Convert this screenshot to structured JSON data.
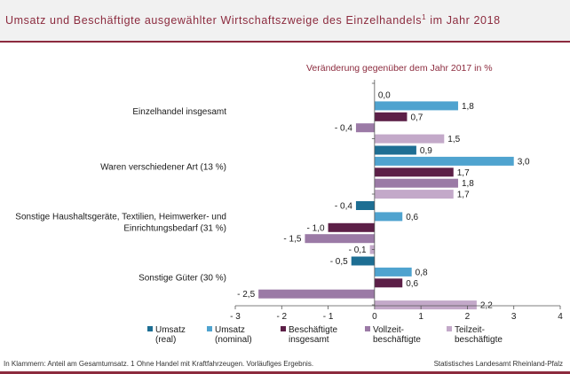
{
  "header": {
    "title": "Umsatz und Beschäftigte ausgewählter Wirtschaftszweige des Einzelhandels",
    "title_sup": "1",
    "title_suffix": " im Jahr 2018"
  },
  "footer": {
    "note": "In Klammern: Anteil am Gesamtumsatz. 1 Ohne Handel mit Kraftfahrzeugen. Vorläufiges Ergebnis.",
    "source": "Statistisches Landesamt Rheinland-Pfalz"
  },
  "colors": {
    "brand": "#8c2b3e",
    "umsatz_real": "#1d6e93",
    "umsatz_nominal": "#4fa3cf",
    "beschaeftigte": "#5c1f47",
    "vollzeit": "#9b7aa6",
    "teilzeit": "#c3a9c9"
  },
  "chart_data": {
    "type": "bar",
    "orientation": "horizontal",
    "subtitle": "Veränderung gegenüber dem Jahr 2017 in %",
    "categories": [
      [
        "Einzelhandel insgesamt"
      ],
      [
        "Waren verschiedener Art (13 %)"
      ],
      [
        "Sonstige Haushaltsgeräte, Textilien, Heimwerker- und",
        "Einrichtungsbedarf (31 %)"
      ],
      [
        "Sonstige Güter (30 %)"
      ]
    ],
    "xlim": [
      -3,
      4
    ],
    "xticks": [
      -3,
      -2,
      -1,
      0,
      1,
      2,
      3,
      4
    ],
    "xtick_labels": [
      "- 3",
      "- 2",
      "- 1",
      "0",
      "1",
      "2",
      "3",
      "4"
    ],
    "grid": false,
    "legend_position": "bottom",
    "series": [
      {
        "name": "Umsatz (real)",
        "legend_lines": [
          "Umsatz",
          "(real)"
        ],
        "color": "#1d6e93",
        "values": [
          0.0,
          0.9,
          -0.4,
          -0.5
        ],
        "labels": [
          "0,0",
          "0,9",
          "- 0,4",
          "- 0,5"
        ]
      },
      {
        "name": "Umsatz (nominal)",
        "legend_lines": [
          "Umsatz",
          "(nominal)"
        ],
        "color": "#4fa3cf",
        "values": [
          1.8,
          3.0,
          0.6,
          0.8
        ],
        "labels": [
          "1,8",
          "3,0",
          "0,6",
          "0,8"
        ]
      },
      {
        "name": "Beschäftigte insgesamt",
        "legend_lines": [
          "Beschäftigte",
          "insgesamt"
        ],
        "color": "#5c1f47",
        "values": [
          0.7,
          1.7,
          -1.0,
          0.6
        ],
        "labels": [
          "0,7",
          "1,7",
          "- 1,0",
          "0,6"
        ]
      },
      {
        "name": "Vollzeitbeschäftigte",
        "legend_lines": [
          "Vollzeit-",
          "beschäftigte"
        ],
        "color": "#9b7aa6",
        "values": [
          -0.4,
          1.8,
          -1.5,
          -2.5
        ],
        "labels": [
          "- 0,4",
          "1,8",
          "- 1,5",
          "- 2,5"
        ]
      },
      {
        "name": "Teilzeitbeschäftigte",
        "legend_lines": [
          "Teilzeit-",
          "beschäftigte"
        ],
        "color": "#c3a9c9",
        "values": [
          1.5,
          1.7,
          -0.1,
          2.2
        ],
        "labels": [
          "1,5",
          "1,7",
          "- 0,1",
          "2,2"
        ]
      }
    ]
  }
}
